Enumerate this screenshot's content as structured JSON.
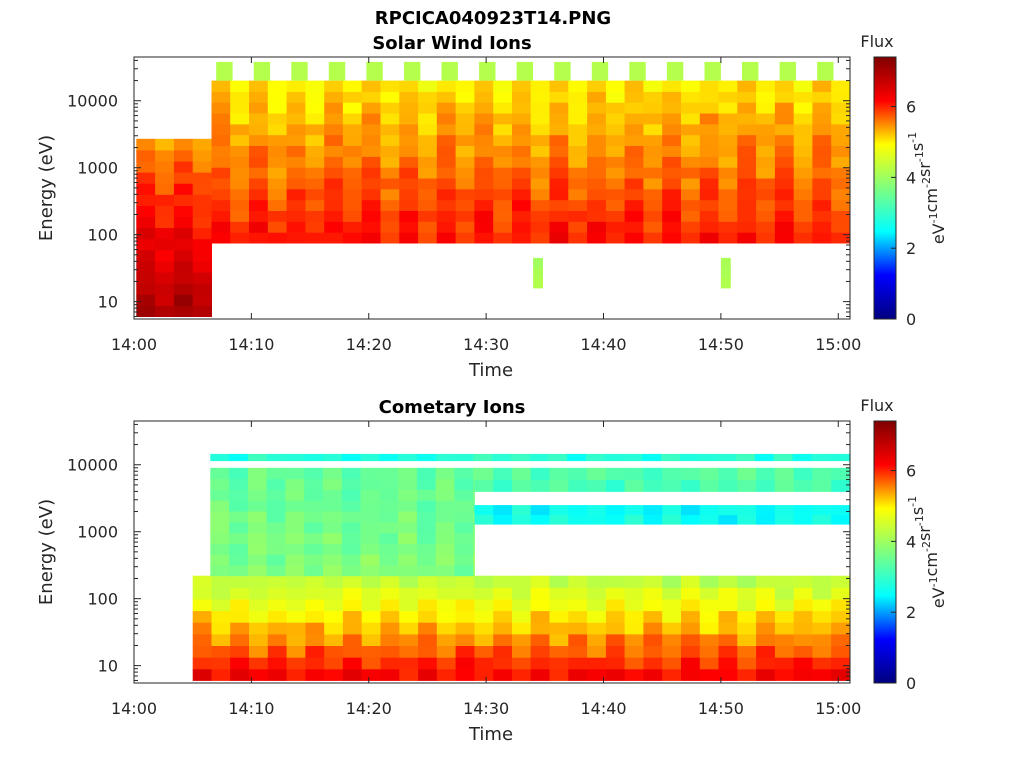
{
  "figure": {
    "file_title": "RPCICA040923T14.PNG"
  },
  "colormap": {
    "name": "jet",
    "stops": [
      "#00007f",
      "#0000ff",
      "#00ffff",
      "#7fff7f",
      "#ffff00",
      "#ff0000",
      "#7f0000"
    ],
    "range": [
      0,
      7.4
    ]
  },
  "chart_data": [
    {
      "type": "heatmap",
      "title": "Solar Wind Ions",
      "xlabel": "Time",
      "ylabel": "Energy (eV)",
      "x_ticks": [
        "14:00",
        "14:10",
        "14:20",
        "14:30",
        "14:40",
        "14:50",
        "15:00"
      ],
      "x_range_minutes": [
        0,
        61
      ],
      "y_scale": "log",
      "y_range": [
        5.5,
        45000
      ],
      "y_ticks": [
        "10",
        "100",
        "1000",
        "10000"
      ],
      "y_tick_values": [
        10,
        100,
        1000,
        10000
      ],
      "colorbar": {
        "label": "Flux",
        "units": "eV<sup>-1</sup>cm<sup>-2</sup>sr<sup>-1</sup>s<sup>-1</sup>",
        "ticks": [
          "0",
          "2",
          "4",
          "6"
        ],
        "tick_values": [
          0,
          2,
          4,
          6
        ]
      },
      "flux_description": "log10 flux colour coded",
      "regions": [
        {
          "t_start": 0.2,
          "t_end": 6.6,
          "e_low": 6,
          "e_high": 2700,
          "flux_at_low": 7.0,
          "flux_at_high": 5.4
        },
        {
          "t_start": 6.6,
          "t_end": 61,
          "e_low": 75,
          "e_high": 20000,
          "flux_at_low": 6.1,
          "flux_at_high": 5.0
        },
        {
          "t_start": 34,
          "t_end": 34.8,
          "e_low": 16,
          "e_high": 45,
          "flux_at_low": 3.9,
          "flux_at_high": 3.9
        },
        {
          "t_start": 50,
          "t_end": 50.8,
          "e_low": 16,
          "e_high": 45,
          "flux_at_low": 3.9,
          "flux_at_high": 3.9
        }
      ],
      "cap_pattern_note": "repeating green/yellow caps above 20000 eV every ~3.2 min",
      "cap_period_minutes": 3.2,
      "cap_energy_range": [
        20000,
        38000
      ],
      "cap_flux": 4.2
    },
    {
      "type": "heatmap",
      "title": "Cometary Ions",
      "xlabel": "Time",
      "ylabel": "Energy (eV)",
      "x_ticks": [
        "14:00",
        "14:10",
        "14:20",
        "14:30",
        "14:40",
        "14:50",
        "15:00"
      ],
      "x_range_minutes": [
        0,
        61
      ],
      "y_scale": "log",
      "y_range": [
        5.5,
        45000
      ],
      "y_ticks": [
        "10",
        "100",
        "1000",
        "10000"
      ],
      "y_tick_values": [
        10,
        100,
        1000,
        10000
      ],
      "colorbar": {
        "label": "Flux",
        "units": "eV<sup>-1</sup>cm<sup>-2</sup>sr<sup>-1</sup>s<sup>-1</sup>",
        "ticks": [
          "0",
          "2",
          "4",
          "6"
        ],
        "tick_values": [
          0,
          2,
          4,
          6
        ]
      },
      "regions": [
        {
          "t_start": 5,
          "t_end": 61,
          "e_low": 6,
          "e_high": 220,
          "flux_at_low": 6.3,
          "flux_at_high": 4.2
        },
        {
          "t_start": 6.5,
          "t_end": 29,
          "e_low": 220,
          "e_high": 9000,
          "flux_at_low": 3.7,
          "flux_at_high": 3.4
        },
        {
          "t_start": 29,
          "t_end": 61,
          "e_low": 4000,
          "e_high": 9000,
          "flux_at_low": 3.1,
          "flux_at_high": 3.3
        },
        {
          "t_start": 29,
          "t_end": 61,
          "e_low": 1300,
          "e_high": 2500,
          "flux_at_low": 2.6,
          "flux_at_high": 2.6
        },
        {
          "t_start": 6.5,
          "t_end": 61,
          "e_low": 11500,
          "e_high": 14500,
          "flux_at_low": 2.8,
          "flux_at_high": 2.8
        }
      ]
    }
  ]
}
